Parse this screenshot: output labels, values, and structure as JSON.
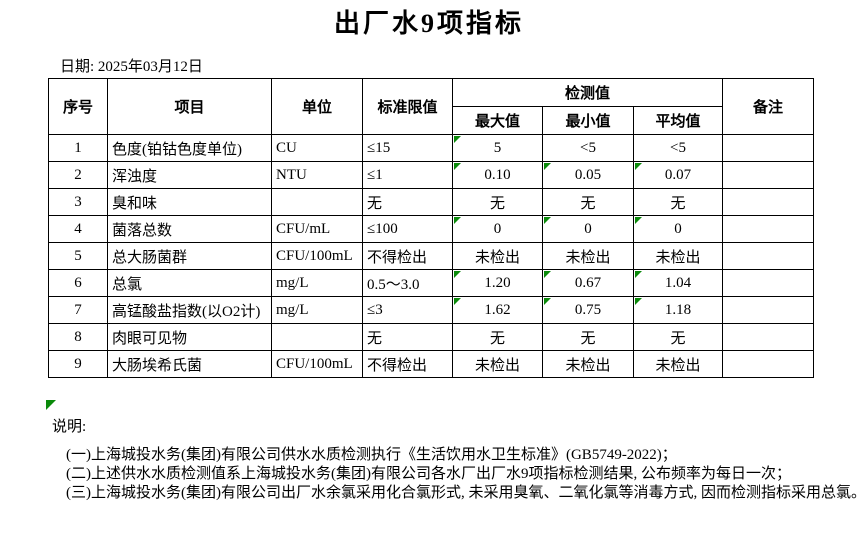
{
  "page": {
    "title": "出厂水9项指标",
    "date_label": "日期: 2025年03月12日"
  },
  "table": {
    "headers": {
      "seq": "序号",
      "item": "项目",
      "unit": "单位",
      "limit": "标准限值",
      "detection_group": "检测值",
      "max": "最大值",
      "min": "最小值",
      "avg": "平均值",
      "remark": "备注"
    },
    "rows": [
      {
        "seq": "1",
        "item": "色度(铂钴色度单位)",
        "unit": "CU",
        "limit": "≤15",
        "max": "5",
        "min": "<5",
        "avg": "<5",
        "remark": "",
        "flags": [
          "max"
        ]
      },
      {
        "seq": "2",
        "item": "浑浊度",
        "unit": "NTU",
        "limit": "≤1",
        "max": "0.10",
        "min": "0.05",
        "avg": "0.07",
        "remark": "",
        "flags": [
          "max",
          "min",
          "avg"
        ]
      },
      {
        "seq": "3",
        "item": "臭和味",
        "unit": "",
        "limit": "无",
        "max": "无",
        "min": "无",
        "avg": "无",
        "remark": "",
        "flags": []
      },
      {
        "seq": "4",
        "item": "菌落总数",
        "unit": "CFU/mL",
        "limit": "≤100",
        "max": "0",
        "min": "0",
        "avg": "0",
        "remark": "",
        "flags": [
          "max",
          "min",
          "avg"
        ]
      },
      {
        "seq": "5",
        "item": "总大肠菌群",
        "unit": "CFU/100mL",
        "limit": "不得检出",
        "max": "未检出",
        "min": "未检出",
        "avg": "未检出",
        "remark": "",
        "flags": []
      },
      {
        "seq": "6",
        "item": "总氯",
        "unit": "mg/L",
        "limit": "0.5～3.0",
        "max": "1.20",
        "min": "0.67",
        "avg": "1.04",
        "remark": "",
        "flags": [
          "max",
          "min",
          "avg"
        ]
      },
      {
        "seq": "7",
        "item": "高锰酸盐指数(以O2计)",
        "unit": "mg/L",
        "limit": "≤3",
        "max": "1.62",
        "min": "0.75",
        "avg": "1.18",
        "remark": "",
        "flags": [
          "max",
          "min",
          "avg"
        ]
      },
      {
        "seq": "8",
        "item": "肉眼可见物",
        "unit": "",
        "limit": "无",
        "max": "无",
        "min": "无",
        "avg": "无",
        "remark": "",
        "flags": []
      },
      {
        "seq": "9",
        "item": "大肠埃希氏菌",
        "unit": "CFU/100mL",
        "limit": "不得检出",
        "max": "未检出",
        "min": "未检出",
        "avg": "未检出",
        "remark": "",
        "flags": []
      }
    ]
  },
  "notes": {
    "label": "说明:",
    "items": [
      "(一)上海城投水务(集团)有限公司供水水质检测执行《生活饮用水卫生标准》(GB5749-2022)；",
      "(二)上述供水水质检测值系上海城投水务(集团)有限公司各水厂出厂水9项指标检测结果, 公布频率为每日一次；",
      "(三)上海城投水务(集团)有限公司出厂水余氯采用化合氯形式, 未采用臭氧、二氧化氯等消毒方式, 因而检测指标采用总氯。"
    ]
  },
  "colors": {
    "flag_green": "#0a8a0a",
    "border": "#000000",
    "text": "#000000"
  }
}
